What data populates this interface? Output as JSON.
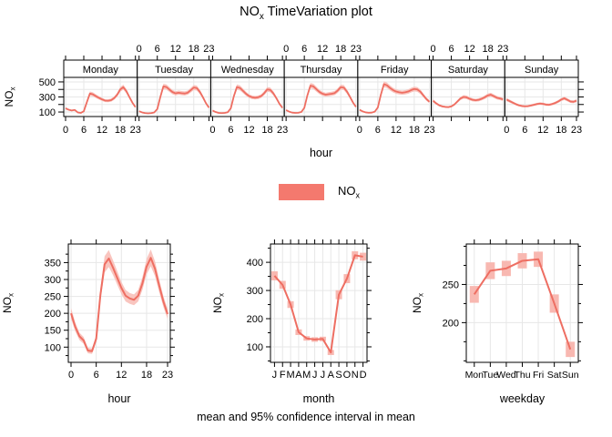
{
  "page": {
    "title": {
      "base": "NO",
      "sub": "x",
      "rest": " TimeVariation plot"
    },
    "caption": "mean and 95% confidence interval in mean",
    "colors": {
      "line": "#ee6e62",
      "ribbon": "#f9c5bf",
      "ci_rect": "#f8b8b1",
      "grid": "#e7e7e7",
      "strip_bg": "#ffffff",
      "legend_swatch": "#f4796e",
      "axis": "#000000"
    }
  },
  "legend": {
    "base": "NO",
    "sub": "x"
  },
  "chart_data": [
    {
      "id": "weekly-diurnal",
      "type": "line",
      "title": "",
      "xlabel": "hour",
      "ylabel": {
        "base": "NO",
        "sub": "x"
      },
      "days": [
        "Monday",
        "Tuesday",
        "Wednesday",
        "Thursday",
        "Friday",
        "Saturday",
        "Sunday"
      ],
      "x_ticks": [
        0,
        6,
        12,
        18,
        23
      ],
      "top_label_days": [
        1,
        3,
        5
      ],
      "bottom_label_days": [
        0,
        2,
        4,
        6
      ],
      "y_ticks": [
        100,
        200,
        300,
        400,
        500
      ],
      "y_labeled": [
        100,
        300,
        500
      ],
      "ylim": [
        40,
        560
      ],
      "grid": true,
      "series": [
        {
          "name": "Monday",
          "values": [
            150,
            130,
            120,
            128,
            95,
            88,
            110,
            230,
            345,
            335,
            310,
            288,
            268,
            252,
            250,
            258,
            285,
            330,
            400,
            430,
            378,
            300,
            225,
            165
          ],
          "ci": [
            12,
            10,
            10,
            10,
            8,
            8,
            9,
            18,
            28,
            27,
            25,
            23,
            21,
            20,
            20,
            21,
            23,
            26,
            32,
            34,
            30,
            24,
            18,
            13
          ]
        },
        {
          "name": "Tuesday",
          "values": [
            110,
            95,
            85,
            82,
            85,
            95,
            140,
            300,
            440,
            432,
            398,
            365,
            348,
            356,
            350,
            346,
            356,
            390,
            425,
            418,
            368,
            298,
            218,
            158
          ],
          "ci": [
            9,
            8,
            7,
            7,
            7,
            8,
            11,
            24,
            35,
            35,
            32,
            29,
            28,
            28,
            28,
            28,
            28,
            31,
            34,
            33,
            29,
            24,
            17,
            13
          ]
        },
        {
          "name": "Wednesday",
          "values": [
            120,
            100,
            88,
            85,
            88,
            98,
            150,
            310,
            432,
            420,
            382,
            342,
            312,
            296,
            290,
            296,
            312,
            350,
            400,
            394,
            348,
            284,
            210,
            155
          ],
          "ci": [
            10,
            8,
            7,
            7,
            7,
            8,
            12,
            25,
            35,
            34,
            31,
            27,
            25,
            24,
            23,
            24,
            25,
            28,
            32,
            32,
            28,
            23,
            17,
            12
          ]
        },
        {
          "name": "Thursday",
          "values": [
            125,
            105,
            92,
            88,
            90,
            100,
            155,
            320,
            450,
            440,
            402,
            366,
            342,
            330,
            336,
            342,
            352,
            386,
            430,
            424,
            374,
            304,
            228,
            168
          ],
          "ci": [
            10,
            8,
            7,
            7,
            7,
            8,
            12,
            26,
            36,
            35,
            32,
            29,
            27,
            26,
            27,
            27,
            28,
            31,
            34,
            34,
            30,
            24,
            18,
            13
          ]
        },
        {
          "name": "Friday",
          "values": [
            130,
            108,
            95,
            90,
            92,
            105,
            160,
            330,
            470,
            455,
            420,
            392,
            372,
            362,
            356,
            362,
            372,
            392,
            406,
            400,
            370,
            320,
            272,
            236
          ],
          "ci": [
            10,
            9,
            8,
            7,
            7,
            8,
            13,
            26,
            38,
            36,
            34,
            31,
            30,
            29,
            28,
            29,
            30,
            31,
            32,
            32,
            30,
            26,
            22,
            19
          ]
        },
        {
          "name": "Saturday",
          "values": [
            250,
            215,
            190,
            175,
            168,
            165,
            175,
            200,
            240,
            280,
            300,
            295,
            276,
            262,
            256,
            262,
            276,
            296,
            320,
            330,
            310,
            290,
            280,
            268
          ],
          "ci": [
            20,
            17,
            15,
            14,
            13,
            13,
            14,
            16,
            19,
            22,
            24,
            24,
            22,
            21,
            20,
            21,
            22,
            24,
            26,
            26,
            25,
            23,
            22,
            21
          ]
        },
        {
          "name": "Sunday",
          "values": [
            265,
            245,
            225,
            205,
            190,
            180,
            176,
            178,
            186,
            196,
            206,
            212,
            208,
            198,
            196,
            206,
            220,
            240,
            266,
            282,
            262,
            240,
            236,
            250
          ],
          "ci": [
            21,
            20,
            18,
            16,
            15,
            14,
            14,
            14,
            15,
            16,
            16,
            17,
            17,
            16,
            16,
            16,
            18,
            19,
            21,
            23,
            21,
            19,
            19,
            20
          ]
        }
      ]
    },
    {
      "id": "hour",
      "type": "line",
      "x_type": "numeric",
      "xlabel": "hour",
      "ylabel": {
        "base": "NO",
        "sub": "x"
      },
      "x_ticks": [
        0,
        6,
        12,
        18,
        23
      ],
      "y_ticks": [
        100,
        150,
        200,
        250,
        300,
        350
      ],
      "y_labeled": [
        100,
        150,
        200,
        250,
        300,
        350
      ],
      "y_minor": [
        75,
        125,
        175,
        225,
        275,
        325,
        375
      ],
      "ylim": [
        55,
        405
      ],
      "grid": true,
      "ci_style": "ribbon",
      "values": [
        200,
        160,
        132,
        120,
        90,
        88,
        125,
        255,
        345,
        362,
        335,
        305,
        275,
        252,
        244,
        240,
        252,
        288,
        338,
        364,
        332,
        282,
        235,
        198
      ],
      "ci": [
        16,
        13,
        11,
        10,
        8,
        8,
        10,
        18,
        24,
        25,
        22,
        20,
        18,
        17,
        16,
        16,
        17,
        19,
        23,
        25,
        22,
        19,
        16,
        15
      ]
    },
    {
      "id": "month",
      "type": "line",
      "x_type": "category",
      "xlabel": "month",
      "ylabel": {
        "base": "NO",
        "sub": "x"
      },
      "categories": [
        "J",
        "F",
        "M",
        "A",
        "M",
        "J",
        "J",
        "A",
        "S",
        "O",
        "N",
        "D"
      ],
      "y_ticks": [
        100,
        200,
        300,
        400
      ],
      "y_labeled": [
        100,
        200,
        300,
        400
      ],
      "y_minor": [
        50,
        150,
        250,
        350,
        450
      ],
      "ylim": [
        45,
        465
      ],
      "grid": true,
      "ci_style": "rect",
      "ci_width": 7,
      "values": [
        352,
        320,
        250,
        152,
        130,
        126,
        128,
        80,
        285,
        342,
        425,
        420
      ],
      "ci": [
        16,
        14,
        12,
        10,
        8,
        8,
        8,
        9,
        16,
        16,
        14,
        14
      ]
    },
    {
      "id": "weekday",
      "type": "line",
      "x_type": "category",
      "xlabel": "weekday",
      "ylabel": {
        "base": "NO",
        "sub": "x"
      },
      "categories": [
        "Mon",
        "Tue",
        "Wed",
        "Thu",
        "Fri",
        "Sat",
        "Sun"
      ],
      "y_ticks": [
        200,
        250
      ],
      "y_labeled": [
        200,
        250
      ],
      "y_minor": [
        150,
        175,
        225,
        275,
        300
      ],
      "ylim": [
        148,
        303
      ],
      "grid": true,
      "ci_style": "rect",
      "ci_width": 10,
      "values": [
        237,
        268,
        271,
        281,
        283,
        225,
        165
      ],
      "ci": [
        11,
        11,
        10,
        10,
        10,
        12,
        10
      ]
    }
  ]
}
